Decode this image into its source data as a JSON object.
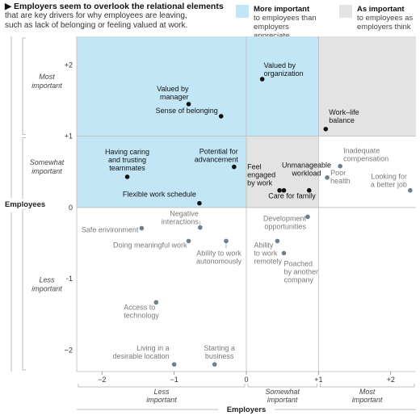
{
  "header": {
    "title": "Employers seem to overlook the relational elements",
    "subtitle_lines": [
      "that are key drivers for why employees are leaving,",
      "such as lack of belonging or feeling valued at work."
    ]
  },
  "legend": [
    {
      "bold": "More important",
      "lines": [
        "to employees than",
        "employers appreciate"
      ],
      "color": "#c3e6f7"
    },
    {
      "bold": "As important",
      "lines": [
        "to employees as",
        "employers think"
      ],
      "color": "#e3e3e3"
    }
  ],
  "colors": {
    "dark_point": "#111111",
    "gray_point": "#6e7f8c",
    "dark_text": "#111111",
    "gray_text": "#7a7a7a",
    "region_blue": "#c3e6f7",
    "region_gray": "#e3e3e3",
    "grid": "#bbbbbb"
  },
  "chart_data": {
    "type": "scatter",
    "xlabel": "Employers",
    "ylabel": "Employees",
    "xlim": [
      -2.35,
      2.35
    ],
    "ylim": [
      -2.3,
      2.4
    ],
    "x_ticks": [
      -2,
      -1,
      0,
      1,
      2
    ],
    "x_tick_labels": [
      "−2",
      "−1",
      "0",
      "+1",
      "+2"
    ],
    "y_ticks": [
      2,
      1,
      0,
      -1,
      -2
    ],
    "y_tick_labels": [
      "+2",
      "+1",
      "0",
      "−1",
      "−2"
    ],
    "x_categories": [
      {
        "lines": [
          "Less",
          "important"
        ],
        "range": [
          -2.35,
          0
        ]
      },
      {
        "lines": [
          "Somewhat",
          "important"
        ],
        "range": [
          0,
          1
        ]
      },
      {
        "lines": [
          "Most",
          "important"
        ],
        "range": [
          1,
          2.35
        ]
      }
    ],
    "y_categories": [
      {
        "lines": [
          "Most",
          "important"
        ],
        "range": [
          1,
          2.4
        ]
      },
      {
        "lines": [
          "Somewhat",
          "important"
        ],
        "range": [
          0,
          1
        ]
      },
      {
        "lines": [
          "Less",
          "important"
        ],
        "range": [
          -2.3,
          0
        ]
      }
    ],
    "regions": [
      {
        "x": [
          -2.35,
          0
        ],
        "y": [
          0,
          2.4
        ],
        "color": "#c3e6f7"
      },
      {
        "x": [
          0,
          1
        ],
        "y": [
          1,
          2.4
        ],
        "color": "#c3e6f7"
      },
      {
        "x": [
          1,
          2.35
        ],
        "y": [
          1,
          2.4
        ],
        "color": "#e3e3e3"
      },
      {
        "x": [
          0,
          1
        ],
        "y": [
          0,
          1
        ],
        "color": "#e3e3e3"
      }
    ],
    "points": [
      {
        "label_lines": [
          "Valued by",
          "organization"
        ],
        "x": 0.22,
        "y": 1.8,
        "style": "dark"
      },
      {
        "label_lines": [
          "Valued by",
          "manager"
        ],
        "x": -0.8,
        "y": 1.45,
        "style": "dark"
      },
      {
        "label_lines": [
          "Sense of belonging"
        ],
        "x": -0.35,
        "y": 1.28,
        "style": "dark"
      },
      {
        "label_lines": [
          "Work–life",
          "balance"
        ],
        "x": 1.1,
        "y": 1.1,
        "style": "dark"
      },
      {
        "label_lines": [
          "Potential for",
          "advancement"
        ],
        "x": -0.17,
        "y": 0.57,
        "style": "dark"
      },
      {
        "label_lines": [
          "Having caring",
          "and trusting",
          "teammates"
        ],
        "x": -1.65,
        "y": 0.43,
        "style": "dark"
      },
      {
        "label_lines": [
          "Unmanageable",
          "workload"
        ],
        "x": 0.52,
        "y": 0.24,
        "style": "dark"
      },
      {
        "label_lines": [
          "Feel",
          "engaged",
          "by work"
        ],
        "x": 0.46,
        "y": 0.24,
        "style": "dark"
      },
      {
        "label_lines": [
          "Care for family"
        ],
        "x": 0.87,
        "y": 0.24,
        "style": "dark"
      },
      {
        "label_lines": [
          "Flexible work schedule"
        ],
        "x": -0.65,
        "y": 0.06,
        "style": "dark"
      },
      {
        "label_lines": [
          "Inadequate",
          "compensation"
        ],
        "x": 1.3,
        "y": 0.58,
        "style": "gray"
      },
      {
        "label_lines": [
          "Poor",
          "health"
        ],
        "x": 1.12,
        "y": 0.42,
        "style": "gray"
      },
      {
        "label_lines": [
          "Looking for",
          "a better job"
        ],
        "x": 2.27,
        "y": 0.24,
        "style": "gray"
      },
      {
        "label_lines": [
          "Development",
          "opportunities"
        ],
        "x": 0.85,
        "y": -0.13,
        "style": "gray"
      },
      {
        "label_lines": [
          "Safe environment"
        ],
        "x": -1.45,
        "y": -0.29,
        "style": "gray"
      },
      {
        "label_lines": [
          "Negative",
          "interactions"
        ],
        "x": -0.64,
        "y": -0.28,
        "style": "gray"
      },
      {
        "label_lines": [
          "Doing meaningful work"
        ],
        "x": -0.8,
        "y": -0.47,
        "style": "gray"
      },
      {
        "label_lines": [
          "Ability to work",
          "autonomously"
        ],
        "x": -0.28,
        "y": -0.47,
        "style": "gray"
      },
      {
        "label_lines": [
          "Ability",
          "to work",
          "remotely"
        ],
        "x": 0.43,
        "y": -0.47,
        "style": "gray"
      },
      {
        "label_lines": [
          "Poached",
          "by another",
          "company"
        ],
        "x": 0.52,
        "y": -0.64,
        "style": "gray"
      },
      {
        "label_lines": [
          "Access to",
          "technology"
        ],
        "x": -1.25,
        "y": -1.33,
        "style": "gray"
      },
      {
        "label_lines": [
          "Living in a",
          "desirable location"
        ],
        "x": -1.0,
        "y": -2.2,
        "style": "gray"
      },
      {
        "label_lines": [
          "Starting a",
          "business"
        ],
        "x": -0.44,
        "y": -2.2,
        "style": "gray"
      }
    ]
  }
}
